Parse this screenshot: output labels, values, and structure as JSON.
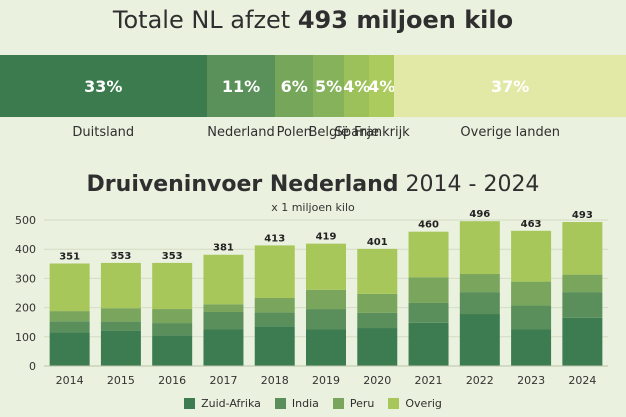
{
  "headline": {
    "prefix": "Totale NL afzet",
    "bold": "493 miljoen kilo"
  },
  "share_bar": [
    {
      "label": "Duitsland",
      "value": 33,
      "text": "33%",
      "color": "#3b7b4e"
    },
    {
      "label": "Nederland",
      "value": 11,
      "text": "11%",
      "color": "#5a9059"
    },
    {
      "label": "Polen",
      "value": 6,
      "text": "6%",
      "color": "#76a65a"
    },
    {
      "label": "België",
      "value": 5,
      "text": "5%",
      "color": "#86b25c"
    },
    {
      "label": "Spanje",
      "value": 4,
      "text": "4%",
      "color": "#9cc05a"
    },
    {
      "label": "Frankrijk",
      "value": 4,
      "text": "4%",
      "color": "#abcb5e"
    },
    {
      "label": "Overige landen",
      "value": 37,
      "text": "37%",
      "color": "#e2e9a6"
    }
  ],
  "chart_data": {
    "type": "bar",
    "stacked": true,
    "title_bold": "Druiveninvoer Nederland",
    "title_rest": "2014 - 2024",
    "subtitle": "x 1 miljoen kilo",
    "xlabel": "",
    "ylabel": "",
    "ylim": [
      0,
      500
    ],
    "yticks": [
      0,
      100,
      200,
      300,
      400,
      500
    ],
    "categories": [
      "2014",
      "2015",
      "2016",
      "2017",
      "2018",
      "2019",
      "2020",
      "2021",
      "2022",
      "2023",
      "2024"
    ],
    "totals": [
      351,
      353,
      353,
      381,
      413,
      419,
      401,
      460,
      496,
      463,
      493
    ],
    "total_labels": [
      "351",
      "353",
      "353",
      "381",
      "413",
      "419",
      "401",
      "460",
      "496",
      "463",
      "493"
    ],
    "series": [
      {
        "name": "Zuid-Afrika",
        "color": "#3d7c51",
        "values": [
          115,
          120,
          105,
          125,
          135,
          125,
          130,
          148,
          178,
          125,
          165
        ]
      },
      {
        "name": "India",
        "color": "#5a8f5c",
        "values": [
          38,
          32,
          42,
          60,
          48,
          70,
          52,
          68,
          75,
          82,
          88
        ]
      },
      {
        "name": "Peru",
        "color": "#7aa55c",
        "values": [
          35,
          46,
          48,
          26,
          50,
          66,
          65,
          88,
          62,
          82,
          60
        ]
      },
      {
        "name": "Overig",
        "color": "#a8c75a",
        "values": [
          163,
          155,
          158,
          170,
          180,
          158,
          154,
          156,
          181,
          174,
          180
        ]
      }
    ],
    "legend_position": "bottom"
  }
}
